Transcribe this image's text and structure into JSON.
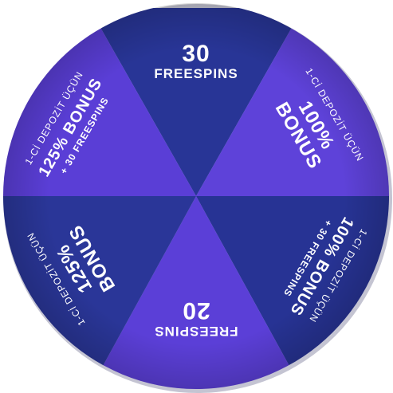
{
  "wheel": {
    "colors": {
      "dark": "#283596",
      "purple": "#5c40d8",
      "deep_purple": "#4832a8",
      "rim_shadow": "#b8b8c6"
    },
    "segments": [
      {
        "number": "30",
        "label": "FREESPINS"
      },
      {
        "line1": "1-Cİ DEPOZİT ÜÇÜN",
        "line2": "100%",
        "line3": "BONUS"
      },
      {
        "line1": "1-Cİ DEPOZİT ÜÇÜN",
        "line2": "100% BONUS",
        "line3": "+ 30 FREESPINS"
      },
      {
        "number": "20",
        "label": "FREESPINS"
      },
      {
        "line1": "1-Cİ DEPOZİT ÜÇÜN",
        "line2": "125%",
        "line3": "BONUS"
      },
      {
        "line1": "1-Cİ DEPOZİT ÜÇÜN",
        "line2": "125% BONUS",
        "line3": "+ 30 FREESPINS"
      }
    ]
  }
}
